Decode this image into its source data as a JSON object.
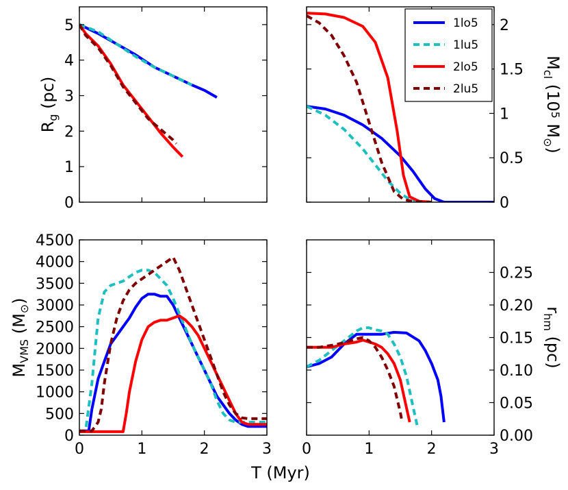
{
  "figure": {
    "shared_xlabel": "T (Myr)",
    "series_styles": [
      {
        "name": "1lo5",
        "color": "#0000ff",
        "dash": "solid"
      },
      {
        "name": "1lu5",
        "color": "#1fbfbf",
        "dash": "dashed"
      },
      {
        "name": "2lo5",
        "color": "#ff0000",
        "dash": "solid"
      },
      {
        "name": "2lu5",
        "color": "#800000",
        "dash": "dashed"
      }
    ]
  },
  "chart_data": [
    {
      "id": "rg",
      "type": "line",
      "ylabel": "R",
      "ylabel_sub": "g",
      "ylabel_unit": "(pc)",
      "xlim": [
        0,
        3
      ],
      "ylim": [
        0,
        5.5
      ],
      "xticks": [],
      "yticks": [
        0,
        1,
        2,
        3,
        4,
        5
      ],
      "series": [
        {
          "name": "1lo5",
          "x": [
            0,
            0.3,
            0.6,
            0.9,
            1.2,
            1.5,
            1.8,
            2.0,
            2.2
          ],
          "values": [
            5.0,
            4.75,
            4.45,
            4.15,
            3.8,
            3.55,
            3.3,
            3.15,
            2.95
          ]
        },
        {
          "name": "1lu5",
          "x": [
            0,
            0.3,
            0.6,
            0.9,
            1.2,
            1.5,
            1.8
          ],
          "values": [
            5.0,
            4.8,
            4.45,
            4.1,
            3.8,
            3.55,
            3.3
          ]
        },
        {
          "name": "2lo5",
          "x": [
            0,
            0.1,
            0.3,
            0.5,
            0.7,
            0.9,
            1.1,
            1.3,
            1.5,
            1.65
          ],
          "values": [
            5.0,
            4.75,
            4.4,
            3.9,
            3.3,
            2.85,
            2.4,
            1.95,
            1.55,
            1.28
          ]
        },
        {
          "name": "2lu5",
          "x": [
            0,
            0.1,
            0.3,
            0.5,
            0.7,
            0.9,
            1.1,
            1.3,
            1.5,
            1.55
          ],
          "values": [
            5.0,
            4.7,
            4.35,
            3.85,
            3.25,
            2.8,
            2.35,
            2.05,
            1.75,
            1.65
          ]
        }
      ]
    },
    {
      "id": "mcl",
      "type": "line",
      "ylabel": "M",
      "ylabel_sub": "cl",
      "ylabel_unit_pre": "(10",
      "ylabel_unit_sup": "5",
      "ylabel_unit_post": " M",
      "ylabel_unit_sub": "⊙",
      "ylabel_unit_close": ")",
      "yaxis_side": "right",
      "xlim": [
        0,
        3
      ],
      "ylim": [
        0,
        2.2
      ],
      "xticks": [],
      "yticks": [
        0,
        0.5,
        1,
        1.5,
        2
      ],
      "ytick_labels": [
        "0",
        "0.5",
        "1",
        "1.5",
        "2"
      ],
      "legend": {
        "location": "top-right",
        "entries": [
          "1lo5",
          "1lu5",
          "2lo5",
          "2lu5"
        ]
      },
      "series": [
        {
          "name": "1lo5",
          "x": [
            0,
            0.3,
            0.6,
            0.9,
            1.2,
            1.5,
            1.7,
            1.9,
            2.05,
            2.2,
            3.0
          ],
          "values": [
            1.08,
            1.05,
            0.98,
            0.87,
            0.72,
            0.52,
            0.35,
            0.15,
            0.04,
            0.0,
            0.0
          ]
        },
        {
          "name": "1lu5",
          "x": [
            0,
            0.3,
            0.6,
            0.9,
            1.1,
            1.3,
            1.5,
            1.65,
            1.8,
            2.0
          ],
          "values": [
            1.08,
            0.98,
            0.82,
            0.6,
            0.42,
            0.24,
            0.1,
            0.03,
            0.01,
            0.0
          ]
        },
        {
          "name": "2lo5",
          "x": [
            0,
            0.3,
            0.6,
            0.9,
            1.1,
            1.3,
            1.45,
            1.55,
            1.65,
            1.8,
            2.0
          ],
          "values": [
            2.13,
            2.12,
            2.08,
            1.98,
            1.8,
            1.4,
            0.8,
            0.3,
            0.06,
            0.01,
            0.0
          ]
        },
        {
          "name": "2lu5",
          "x": [
            0,
            0.2,
            0.4,
            0.6,
            0.8,
            1.0,
            1.2,
            1.4,
            1.55,
            1.7,
            2.0
          ],
          "values": [
            2.1,
            2.02,
            1.88,
            1.65,
            1.35,
            0.9,
            0.45,
            0.12,
            0.03,
            0.01,
            0.0
          ]
        }
      ]
    },
    {
      "id": "mvms",
      "type": "line",
      "ylabel": "M",
      "ylabel_sub": "VMS",
      "ylabel_unit_pre": "(M",
      "ylabel_unit_sub": "⊙",
      "ylabel_unit_close": ")",
      "xlim": [
        0,
        3
      ],
      "ylim": [
        0,
        4500
      ],
      "xticks": [
        0,
        1,
        2,
        3
      ],
      "yticks": [
        0,
        500,
        1000,
        1500,
        2000,
        2500,
        3000,
        3500,
        4000,
        4500
      ],
      "series": [
        {
          "name": "1lo5",
          "x": [
            0,
            0.15,
            0.2,
            0.3,
            0.4,
            0.5,
            0.6,
            0.7,
            0.8,
            0.9,
            1.0,
            1.1,
            1.2,
            1.3,
            1.4,
            1.5,
            1.6,
            1.7,
            1.8,
            1.9,
            2.0,
            2.1,
            2.2,
            2.3,
            2.4,
            2.5,
            2.6,
            2.7,
            2.8,
            3.0
          ],
          "values": [
            100,
            100,
            600,
            1300,
            1700,
            2100,
            2300,
            2500,
            2700,
            2950,
            3150,
            3250,
            3250,
            3200,
            3200,
            3000,
            2700,
            2400,
            2100,
            1800,
            1500,
            1200,
            900,
            700,
            500,
            350,
            250,
            200,
            200,
            200
          ]
        },
        {
          "name": "1lu5",
          "x": [
            0,
            0.1,
            0.2,
            0.3,
            0.4,
            0.5,
            0.6,
            0.7,
            0.8,
            0.9,
            1.0,
            1.1,
            1.2,
            1.3,
            1.4,
            1.5,
            1.6,
            1.7,
            1.8,
            1.9,
            2.0,
            2.1,
            2.2,
            2.3,
            2.4,
            2.5,
            2.6,
            3.0
          ],
          "values": [
            100,
            100,
            1200,
            2700,
            3300,
            3450,
            3500,
            3550,
            3650,
            3750,
            3800,
            3800,
            3750,
            3600,
            3450,
            3150,
            2800,
            2450,
            2100,
            1800,
            1500,
            1200,
            800,
            500,
            350,
            300,
            300,
            300
          ]
        },
        {
          "name": "2lo5",
          "x": [
            0,
            0.7,
            0.75,
            0.8,
            0.9,
            1.0,
            1.1,
            1.2,
            1.3,
            1.4,
            1.5,
            1.6,
            1.7,
            1.8,
            1.9,
            2.0,
            2.1,
            2.2,
            2.3,
            2.4,
            2.5,
            2.6,
            2.7,
            2.8,
            3.0
          ],
          "values": [
            80,
            80,
            500,
            1000,
            1700,
            2200,
            2500,
            2600,
            2650,
            2650,
            2700,
            2750,
            2650,
            2500,
            2300,
            2000,
            1700,
            1400,
            1100,
            800,
            500,
            300,
            250,
            250,
            250
          ]
        },
        {
          "name": "2lu5",
          "x": [
            0,
            0.2,
            0.3,
            0.35,
            0.4,
            0.5,
            0.6,
            0.7,
            0.8,
            0.9,
            1.0,
            1.1,
            1.2,
            1.3,
            1.4,
            1.5,
            1.6,
            1.7,
            1.8,
            1.9,
            2.0,
            2.1,
            2.2,
            2.3,
            2.4,
            2.5,
            2.6,
            2.7,
            2.8,
            3.0
          ],
          "values": [
            100,
            100,
            300,
            600,
            1200,
            2100,
            2700,
            3100,
            3350,
            3500,
            3600,
            3700,
            3800,
            3900,
            4000,
            4100,
            3800,
            3400,
            3000,
            2600,
            2200,
            1800,
            1400,
            1000,
            700,
            500,
            400,
            380,
            380,
            380
          ]
        }
      ]
    },
    {
      "id": "rhm",
      "type": "line",
      "ylabel": "r",
      "ylabel_sub": "hm",
      "ylabel_unit": "(pc)",
      "yaxis_side": "right",
      "xlim": [
        0,
        3
      ],
      "ylim": [
        0,
        0.3
      ],
      "xticks": [
        0,
        1,
        2,
        3
      ],
      "yticks": [
        0,
        0.05,
        0.1,
        0.15,
        0.2,
        0.25
      ],
      "ytick_labels": [
        "0.00",
        "0.05",
        "0.10",
        "0.15",
        "0.20",
        "0.25"
      ],
      "series": [
        {
          "name": "1lo5",
          "x": [
            0,
            0.2,
            0.4,
            0.6,
            0.8,
            1.0,
            1.2,
            1.4,
            1.6,
            1.8,
            1.9,
            2.0,
            2.1,
            2.15,
            2.2
          ],
          "values": [
            0.105,
            0.11,
            0.12,
            0.14,
            0.155,
            0.155,
            0.155,
            0.158,
            0.157,
            0.145,
            0.13,
            0.11,
            0.085,
            0.06,
            0.02
          ]
        },
        {
          "name": "1lu5",
          "x": [
            0,
            0.2,
            0.4,
            0.6,
            0.8,
            0.9,
            1.0,
            1.1,
            1.2,
            1.3,
            1.4,
            1.5,
            1.6,
            1.7,
            1.78
          ],
          "values": [
            0.105,
            0.115,
            0.13,
            0.145,
            0.16,
            0.165,
            0.165,
            0.162,
            0.16,
            0.155,
            0.14,
            0.12,
            0.09,
            0.045,
            0.01
          ]
        },
        {
          "name": "2lo5",
          "x": [
            0,
            0.2,
            0.4,
            0.6,
            0.8,
            0.9,
            1.0,
            1.1,
            1.2,
            1.3,
            1.4,
            1.5,
            1.58,
            1.65
          ],
          "values": [
            0.135,
            0.135,
            0.135,
            0.14,
            0.143,
            0.146,
            0.143,
            0.14,
            0.135,
            0.125,
            0.11,
            0.085,
            0.05,
            0.02
          ]
        },
        {
          "name": "2lu5",
          "x": [
            0,
            0.2,
            0.4,
            0.6,
            0.8,
            0.9,
            1.0,
            1.1,
            1.2,
            1.3,
            1.4,
            1.45,
            1.5,
            1.53
          ],
          "values": [
            0.135,
            0.135,
            0.138,
            0.142,
            0.148,
            0.15,
            0.145,
            0.135,
            0.12,
            0.1,
            0.075,
            0.055,
            0.035,
            0.02
          ]
        }
      ]
    }
  ]
}
